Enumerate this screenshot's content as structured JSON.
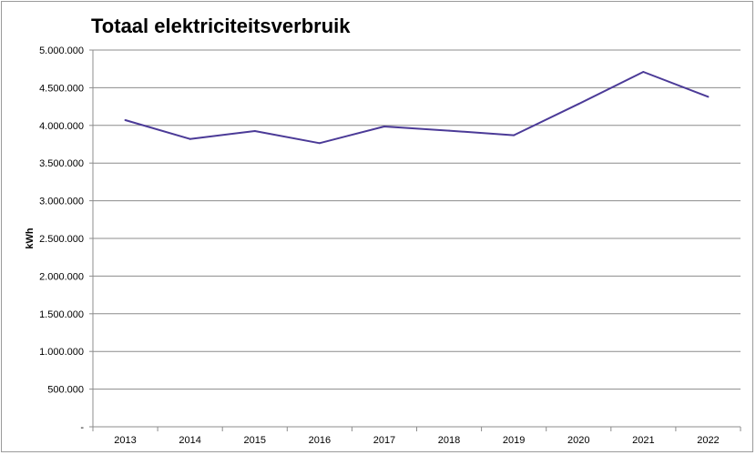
{
  "chart_data": {
    "type": "line",
    "title": "Totaal elektriciteitsverbruik",
    "ylabel": "kWh",
    "xlabel": "",
    "categories": [
      "2013",
      "2014",
      "2015",
      "2016",
      "2017",
      "2018",
      "2019",
      "2020",
      "2021",
      "2022"
    ],
    "series": [
      {
        "values": [
          4070000,
          3820000,
          3925000,
          3765000,
          3985000,
          3930000,
          3870000,
          4285000,
          4710000,
          4380000
        ],
        "color": "#4b3a97"
      }
    ],
    "ylim": [
      0,
      5000000
    ],
    "yticks": [
      0,
      500000,
      1000000,
      1500000,
      2000000,
      2500000,
      3000000,
      3500000,
      4000000,
      4500000,
      5000000
    ],
    "ytick_labels": [
      "-",
      "500.000",
      "1.000.000",
      "1.500.000",
      "2.000.000",
      "2.500.000",
      "3.000.000",
      "3.500.000",
      "4.000.000",
      "4.500.000",
      "5.000.000"
    ],
    "grid": true,
    "legend": "none"
  }
}
